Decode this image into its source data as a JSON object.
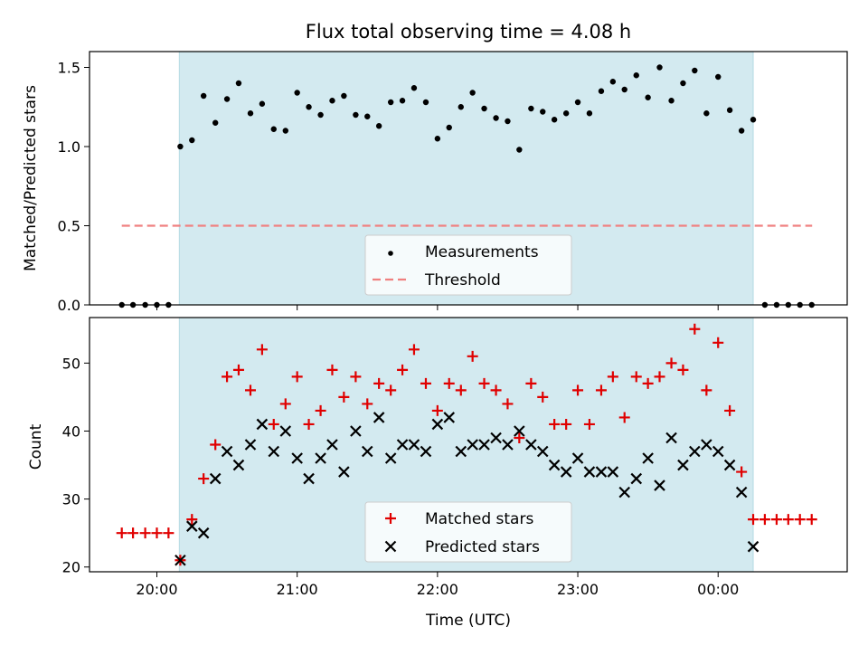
{
  "chart_data": [
    {
      "type": "scatter",
      "title": "Flux total observing time = 4.08 h",
      "xlabel": "",
      "ylabel": "Matched/Predicted stars",
      "ylim": [
        0,
        1.6
      ],
      "yticks": [
        0.0,
        0.5,
        1.0,
        1.5
      ],
      "ytick_labels": [
        "0.0",
        "0.5",
        "1.0",
        "1.5"
      ],
      "xlim_hours": [
        19.52,
        24.92
      ],
      "shaded_span_hours": [
        20.16,
        24.25
      ],
      "shade_color": "#d3eaf0",
      "legend": "lower center",
      "series": [
        {
          "name": "Measurements",
          "color": "#000000",
          "marker": "dot",
          "points": [
            [
              19.75,
              0
            ],
            [
              19.83,
              0
            ],
            [
              19.917,
              0
            ],
            [
              20.0,
              0
            ],
            [
              20.083,
              0
            ],
            [
              20.167,
              1.0
            ],
            [
              20.25,
              1.04
            ],
            [
              20.333,
              1.32
            ],
            [
              20.417,
              1.15
            ],
            [
              20.5,
              1.3
            ],
            [
              20.583,
              1.4
            ],
            [
              20.667,
              1.21
            ],
            [
              20.75,
              1.27
            ],
            [
              20.833,
              1.11
            ],
            [
              20.917,
              1.1
            ],
            [
              21.0,
              1.34
            ],
            [
              21.083,
              1.25
            ],
            [
              21.167,
              1.2
            ],
            [
              21.25,
              1.29
            ],
            [
              21.333,
              1.32
            ],
            [
              21.417,
              1.2
            ],
            [
              21.5,
              1.19
            ],
            [
              21.583,
              1.13
            ],
            [
              21.667,
              1.28
            ],
            [
              21.75,
              1.29
            ],
            [
              21.833,
              1.37
            ],
            [
              21.917,
              1.28
            ],
            [
              22.0,
              1.05
            ],
            [
              22.083,
              1.12
            ],
            [
              22.167,
              1.25
            ],
            [
              22.25,
              1.34
            ],
            [
              22.333,
              1.24
            ],
            [
              22.417,
              1.18
            ],
            [
              22.5,
              1.16
            ],
            [
              22.583,
              0.98
            ],
            [
              22.667,
              1.24
            ],
            [
              22.75,
              1.22
            ],
            [
              22.833,
              1.17
            ],
            [
              22.917,
              1.21
            ],
            [
              23.0,
              1.28
            ],
            [
              23.083,
              1.21
            ],
            [
              23.167,
              1.35
            ],
            [
              23.25,
              1.41
            ],
            [
              23.333,
              1.36
            ],
            [
              23.417,
              1.45
            ],
            [
              23.5,
              1.31
            ],
            [
              23.583,
              1.5
            ],
            [
              23.667,
              1.29
            ],
            [
              23.75,
              1.4
            ],
            [
              23.833,
              1.48
            ],
            [
              23.917,
              1.21
            ],
            [
              24.0,
              1.44
            ],
            [
              24.083,
              1.23
            ],
            [
              24.167,
              1.1
            ],
            [
              24.25,
              1.17
            ],
            [
              24.333,
              0
            ],
            [
              24.417,
              0
            ],
            [
              24.5,
              0
            ],
            [
              24.583,
              0
            ],
            [
              24.667,
              0
            ]
          ]
        },
        {
          "name": "Threshold",
          "color": "#f08080",
          "style": "dashed",
          "x": [
            19.75,
            24.67
          ],
          "y": [
            0.5,
            0.5
          ]
        }
      ]
    },
    {
      "type": "scatter",
      "title": "",
      "xlabel": "Time (UTC)",
      "ylabel": "Count",
      "ylim": [
        19.3,
        56.7
      ],
      "yticks": [
        20,
        30,
        40,
        50
      ],
      "ytick_labels": [
        "20",
        "30",
        "40",
        "50"
      ],
      "xticks_hours": [
        20,
        21,
        22,
        23,
        24
      ],
      "xtick_labels": [
        "20:00",
        "21:00",
        "22:00",
        "23:00",
        "00:00"
      ],
      "xlim_hours": [
        19.52,
        24.92
      ],
      "shaded_span_hours": [
        20.16,
        24.25
      ],
      "legend": "lower center",
      "series": [
        {
          "name": "Matched stars",
          "color": "#e00000",
          "marker": "plus",
          "points": [
            [
              19.75,
              25
            ],
            [
              19.83,
              25
            ],
            [
              19.917,
              25
            ],
            [
              20.0,
              25
            ],
            [
              20.083,
              25
            ],
            [
              20.167,
              21
            ],
            [
              20.25,
              27
            ],
            [
              20.333,
              33
            ],
            [
              20.417,
              38
            ],
            [
              20.5,
              48
            ],
            [
              20.583,
              49
            ],
            [
              20.667,
              46
            ],
            [
              20.75,
              52
            ],
            [
              20.833,
              41
            ],
            [
              20.917,
              44
            ],
            [
              21.0,
              48
            ],
            [
              21.083,
              41
            ],
            [
              21.167,
              43
            ],
            [
              21.25,
              49
            ],
            [
              21.333,
              45
            ],
            [
              21.417,
              48
            ],
            [
              21.5,
              44
            ],
            [
              21.583,
              47
            ],
            [
              21.667,
              46
            ],
            [
              21.75,
              49
            ],
            [
              21.833,
              52
            ],
            [
              21.917,
              47
            ],
            [
              22.0,
              43
            ],
            [
              22.083,
              47
            ],
            [
              22.167,
              46
            ],
            [
              22.25,
              51
            ],
            [
              22.333,
              47
            ],
            [
              22.417,
              46
            ],
            [
              22.5,
              44
            ],
            [
              22.583,
              39
            ],
            [
              22.667,
              47
            ],
            [
              22.75,
              45
            ],
            [
              22.833,
              41
            ],
            [
              22.917,
              41
            ],
            [
              23.0,
              46
            ],
            [
              23.083,
              41
            ],
            [
              23.167,
              46
            ],
            [
              23.25,
              48
            ],
            [
              23.333,
              42
            ],
            [
              23.417,
              48
            ],
            [
              23.5,
              47
            ],
            [
              23.583,
              48
            ],
            [
              23.667,
              50
            ],
            [
              23.75,
              49
            ],
            [
              23.833,
              55
            ],
            [
              23.917,
              46
            ],
            [
              24.0,
              53
            ],
            [
              24.083,
              43
            ],
            [
              24.167,
              34
            ],
            [
              24.25,
              27
            ],
            [
              24.333,
              27
            ],
            [
              24.417,
              27
            ],
            [
              24.5,
              27
            ],
            [
              24.583,
              27
            ],
            [
              24.667,
              27
            ]
          ]
        },
        {
          "name": "Predicted stars",
          "color": "#000000",
          "marker": "x",
          "points": [
            [
              20.167,
              21
            ],
            [
              20.25,
              26
            ],
            [
              20.333,
              25
            ],
            [
              20.417,
              33
            ],
            [
              20.5,
              37
            ],
            [
              20.583,
              35
            ],
            [
              20.667,
              38
            ],
            [
              20.75,
              41
            ],
            [
              20.833,
              37
            ],
            [
              20.917,
              40
            ],
            [
              21.0,
              36
            ],
            [
              21.083,
              33
            ],
            [
              21.167,
              36
            ],
            [
              21.25,
              38
            ],
            [
              21.333,
              34
            ],
            [
              21.417,
              40
            ],
            [
              21.5,
              37
            ],
            [
              21.583,
              42
            ],
            [
              21.667,
              36
            ],
            [
              21.75,
              38
            ],
            [
              21.833,
              38
            ],
            [
              21.917,
              37
            ],
            [
              22.0,
              41
            ],
            [
              22.083,
              42
            ],
            [
              22.167,
              37
            ],
            [
              22.25,
              38
            ],
            [
              22.333,
              38
            ],
            [
              22.417,
              39
            ],
            [
              22.5,
              38
            ],
            [
              22.583,
              40
            ],
            [
              22.667,
              38
            ],
            [
              22.75,
              37
            ],
            [
              22.833,
              35
            ],
            [
              22.917,
              34
            ],
            [
              23.0,
              36
            ],
            [
              23.083,
              34
            ],
            [
              23.167,
              34
            ],
            [
              23.25,
              34
            ],
            [
              23.333,
              31
            ],
            [
              23.417,
              33
            ],
            [
              23.5,
              36
            ],
            [
              23.583,
              32
            ],
            [
              23.667,
              39
            ],
            [
              23.75,
              35
            ],
            [
              23.833,
              37
            ],
            [
              23.917,
              38
            ],
            [
              24.0,
              37
            ],
            [
              24.083,
              35
            ],
            [
              24.167,
              31
            ],
            [
              24.25,
              23
            ]
          ]
        }
      ]
    }
  ]
}
